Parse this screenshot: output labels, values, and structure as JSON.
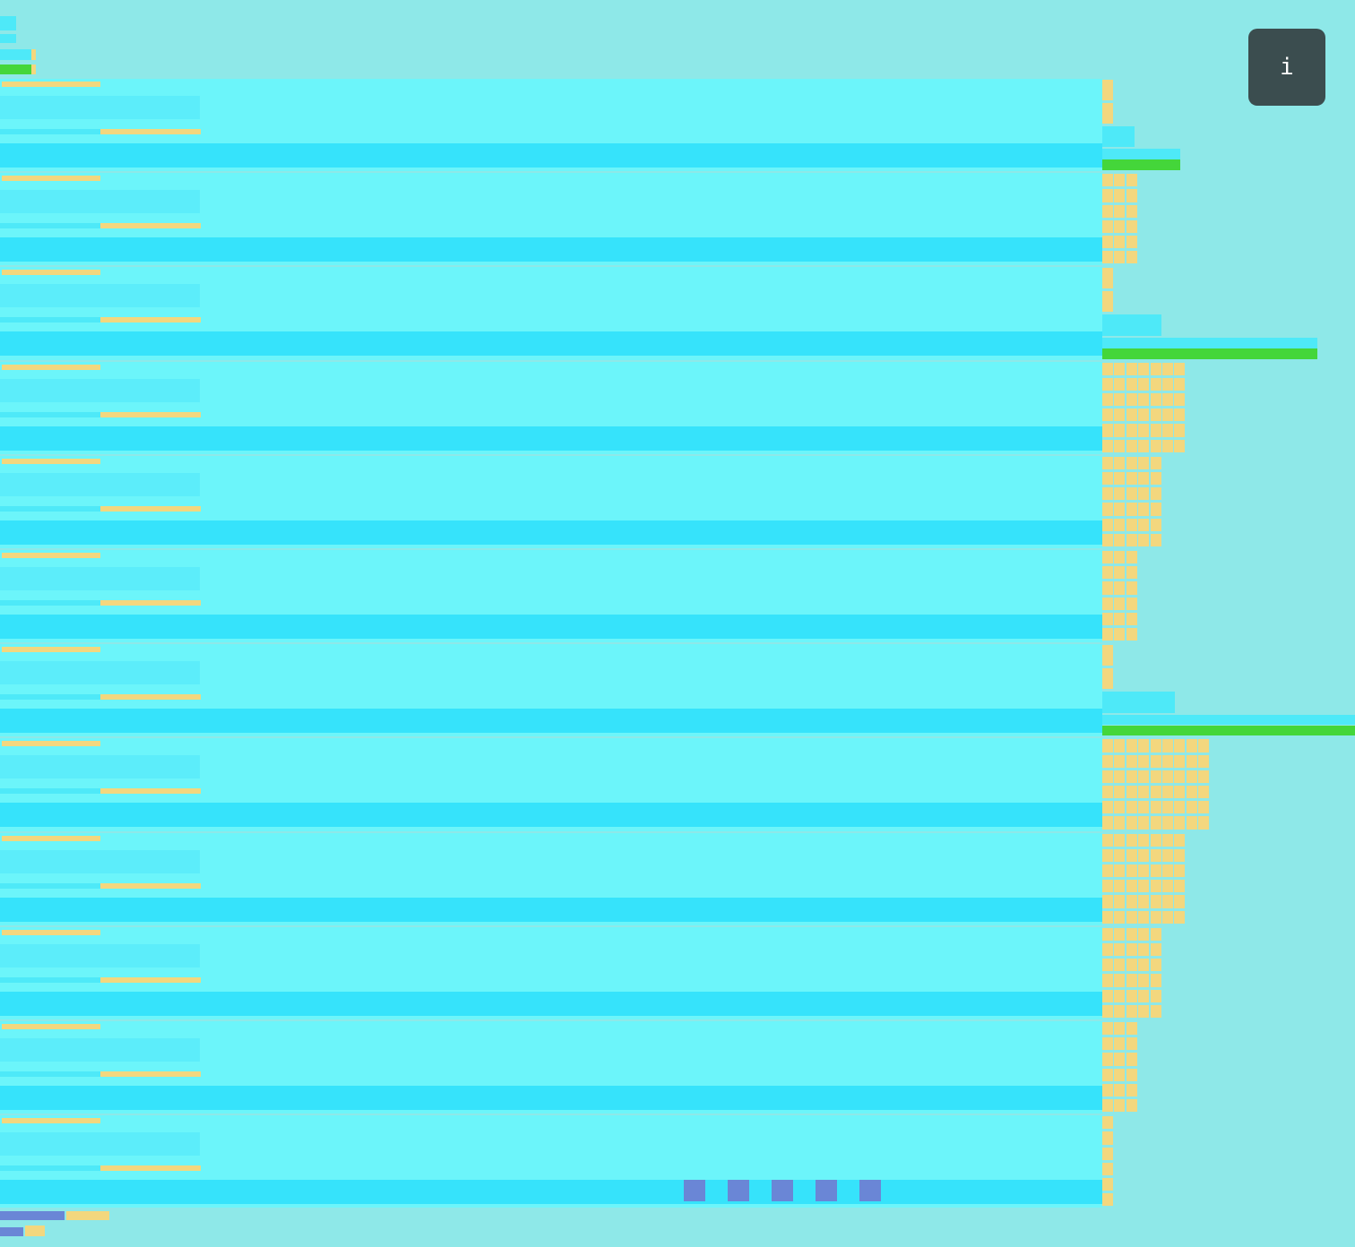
{
  "info_button": {
    "glyph": "i",
    "icon": "info-icon"
  },
  "colors": {
    "background": "#8ee8e8",
    "section_fill": "#6cf5fa",
    "section_bar": "#36e3fb",
    "cell_cyan": "#4ee9f8",
    "cell_yellow": "#f3d77e",
    "cell_green": "#44d63a",
    "cell_blue": "#6a86d6",
    "button": "#3b4d4f"
  },
  "sections": [
    {
      "side_rows": [
        1,
        1,
        2,
        3
      ]
    },
    {
      "side_rows": [
        3,
        3,
        3,
        3,
        3,
        3
      ]
    },
    {
      "side_rows": [
        1,
        1,
        4,
        6
      ]
    },
    {
      "side_rows": [
        7,
        7,
        7,
        7,
        7,
        7
      ]
    },
    {
      "side_rows": [
        5,
        5,
        5,
        5,
        5,
        5
      ]
    },
    {
      "side_rows": [
        3,
        3,
        3,
        3,
        3,
        3
      ]
    },
    {
      "side_rows": [
        1,
        1,
        5,
        9
      ]
    },
    {
      "side_rows": [
        9,
        9,
        9,
        9,
        9,
        9
      ]
    },
    {
      "side_rows": [
        7,
        7,
        7,
        7,
        7,
        7
      ]
    },
    {
      "side_rows": [
        5,
        5,
        5,
        5,
        5,
        5
      ]
    },
    {
      "side_rows": [
        3,
        3,
        3,
        3,
        3,
        3
      ]
    },
    {
      "side_rows": [
        1,
        1,
        1,
        1,
        1,
        1
      ],
      "highlighted_cells": 5
    }
  ]
}
